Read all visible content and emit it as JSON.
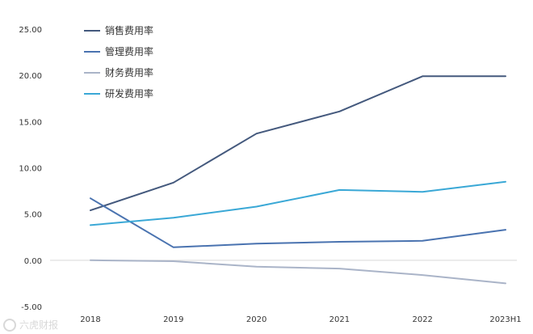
{
  "chart_data": {
    "type": "line",
    "categories": [
      "2018",
      "2019",
      "2020",
      "2021",
      "2022",
      "2023H1"
    ],
    "y_ticks": [
      "25.00",
      "20.00",
      "15.00",
      "10.00",
      "5.00",
      "0.00",
      "-5.00"
    ],
    "ylim": [
      -5,
      25
    ],
    "grid": false,
    "legend_position": "top-left",
    "series": [
      {
        "name": "销售费用率",
        "color": "#44597d",
        "values": [
          5.4,
          8.4,
          13.7,
          16.1,
          19.9,
          19.9
        ]
      },
      {
        "name": "管理费用率",
        "color": "#4a73b0",
        "values": [
          6.7,
          1.4,
          1.8,
          2.0,
          2.1,
          3.3
        ]
      },
      {
        "name": "财务费用率",
        "color": "#aab4c8",
        "values": [
          0.0,
          -0.1,
          -0.7,
          -0.9,
          -1.6,
          -2.5
        ]
      },
      {
        "name": "研发费用率",
        "color": "#3aa8d6",
        "values": [
          3.8,
          4.6,
          5.8,
          7.6,
          7.4,
          8.5
        ]
      }
    ]
  },
  "watermark": {
    "text": "六虎财报"
  }
}
